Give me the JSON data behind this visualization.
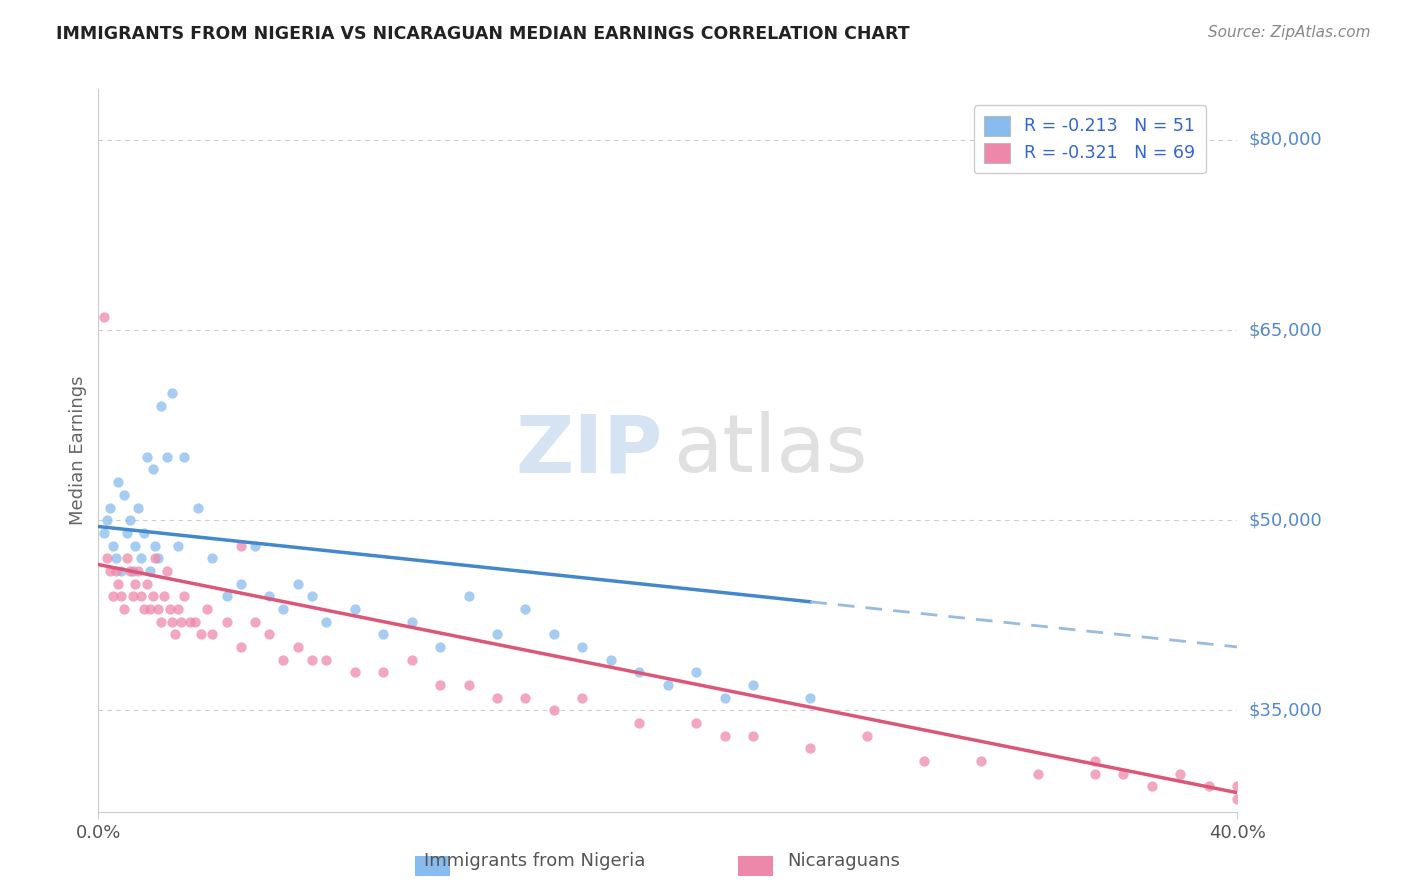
{
  "title": "IMMIGRANTS FROM NIGERIA VS NICARAGUAN MEDIAN EARNINGS CORRELATION CHART",
  "source": "Source: ZipAtlas.com",
  "ylabel": "Median Earnings",
  "yticks": [
    35000,
    50000,
    65000,
    80000
  ],
  "ytick_labels": [
    "$35,000",
    "$50,000",
    "$65,000",
    "$80,000"
  ],
  "xmin": 0.0,
  "xmax": 40.0,
  "ymin": 27000,
  "ymax": 84000,
  "legend_entry_blue": "R = -0.213   N = 51",
  "legend_entry_pink": "R = -0.321   N = 69",
  "legend_label_blue": "Immigrants from Nigeria",
  "legend_label_pink": "Nicaraguans",
  "title_color": "#222222",
  "source_color": "#888888",
  "axis_label_color": "#6699cc",
  "ytick_color": "#5588cc",
  "grid_color": "#cccccc",
  "grid_style": "--",
  "nigeria_scatter_color": "#88bbee",
  "nicaragua_scatter_color": "#ee88aa",
  "nigeria_trend_color": "#4488cc",
  "nicaragua_trend_color": "#dd5577",
  "dashed_color": "#99bbdd",
  "scatter_size": 55,
  "scatter_alpha": 0.75,
  "nigeria_points_x": [
    0.2,
    0.3,
    0.4,
    0.5,
    0.6,
    0.7,
    0.8,
    0.9,
    1.0,
    1.1,
    1.2,
    1.3,
    1.4,
    1.5,
    1.6,
    1.7,
    1.8,
    1.9,
    2.0,
    2.1,
    2.2,
    2.4,
    2.6,
    2.8,
    3.0,
    3.5,
    4.0,
    4.5,
    5.0,
    5.5,
    6.0,
    6.5,
    7.0,
    7.5,
    8.0,
    9.0,
    10.0,
    11.0,
    12.0,
    13.0,
    14.0,
    15.0,
    16.0,
    17.0,
    18.0,
    19.0,
    20.0,
    21.0,
    22.0,
    23.0,
    25.0
  ],
  "nigeria_points_y": [
    49000,
    50000,
    51000,
    48000,
    47000,
    53000,
    46000,
    52000,
    49000,
    50000,
    46000,
    48000,
    51000,
    47000,
    49000,
    55000,
    46000,
    54000,
    48000,
    47000,
    59000,
    55000,
    60000,
    48000,
    55000,
    51000,
    47000,
    44000,
    45000,
    48000,
    44000,
    43000,
    45000,
    44000,
    42000,
    43000,
    41000,
    42000,
    40000,
    44000,
    41000,
    43000,
    41000,
    40000,
    39000,
    38000,
    37000,
    38000,
    36000,
    37000,
    36000
  ],
  "nicaragua_points_x": [
    0.2,
    0.3,
    0.4,
    0.5,
    0.6,
    0.7,
    0.8,
    0.9,
    1.0,
    1.1,
    1.2,
    1.3,
    1.4,
    1.5,
    1.6,
    1.7,
    1.8,
    1.9,
    2.0,
    2.1,
    2.2,
    2.3,
    2.4,
    2.5,
    2.6,
    2.7,
    2.8,
    2.9,
    3.0,
    3.2,
    3.4,
    3.6,
    3.8,
    4.0,
    4.5,
    5.0,
    5.5,
    6.0,
    6.5,
    7.0,
    7.5,
    8.0,
    9.0,
    10.0,
    11.0,
    12.0,
    13.0,
    14.0,
    15.0,
    16.0,
    17.0,
    19.0,
    21.0,
    23.0,
    25.0,
    27.0,
    29.0,
    31.0,
    33.0,
    35.0,
    37.0,
    39.0,
    40.0,
    5.0,
    22.0,
    35.0,
    36.0,
    38.0,
    40.0
  ],
  "nicaragua_points_y": [
    66000,
    47000,
    46000,
    44000,
    46000,
    45000,
    44000,
    43000,
    47000,
    46000,
    44000,
    45000,
    46000,
    44000,
    43000,
    45000,
    43000,
    44000,
    47000,
    43000,
    42000,
    44000,
    46000,
    43000,
    42000,
    41000,
    43000,
    42000,
    44000,
    42000,
    42000,
    41000,
    43000,
    41000,
    42000,
    40000,
    42000,
    41000,
    39000,
    40000,
    39000,
    39000,
    38000,
    38000,
    39000,
    37000,
    37000,
    36000,
    36000,
    35000,
    36000,
    34000,
    34000,
    33000,
    32000,
    33000,
    31000,
    31000,
    30000,
    30000,
    29000,
    29000,
    28000,
    48000,
    33000,
    31000,
    30000,
    30000,
    29000
  ],
  "nigeria_trend_x0": 0.0,
  "nigeria_trend_y0": 49500,
  "nigeria_trend_x1": 40.0,
  "nigeria_trend_y1": 40000,
  "nigeria_solid_end": 25.0,
  "nicaragua_trend_x0": 0.0,
  "nicaragua_trend_y0": 46500,
  "nicaragua_trend_x1": 40.0,
  "nicaragua_trend_y1": 28500,
  "nicaragua_solid_end": 40.0
}
